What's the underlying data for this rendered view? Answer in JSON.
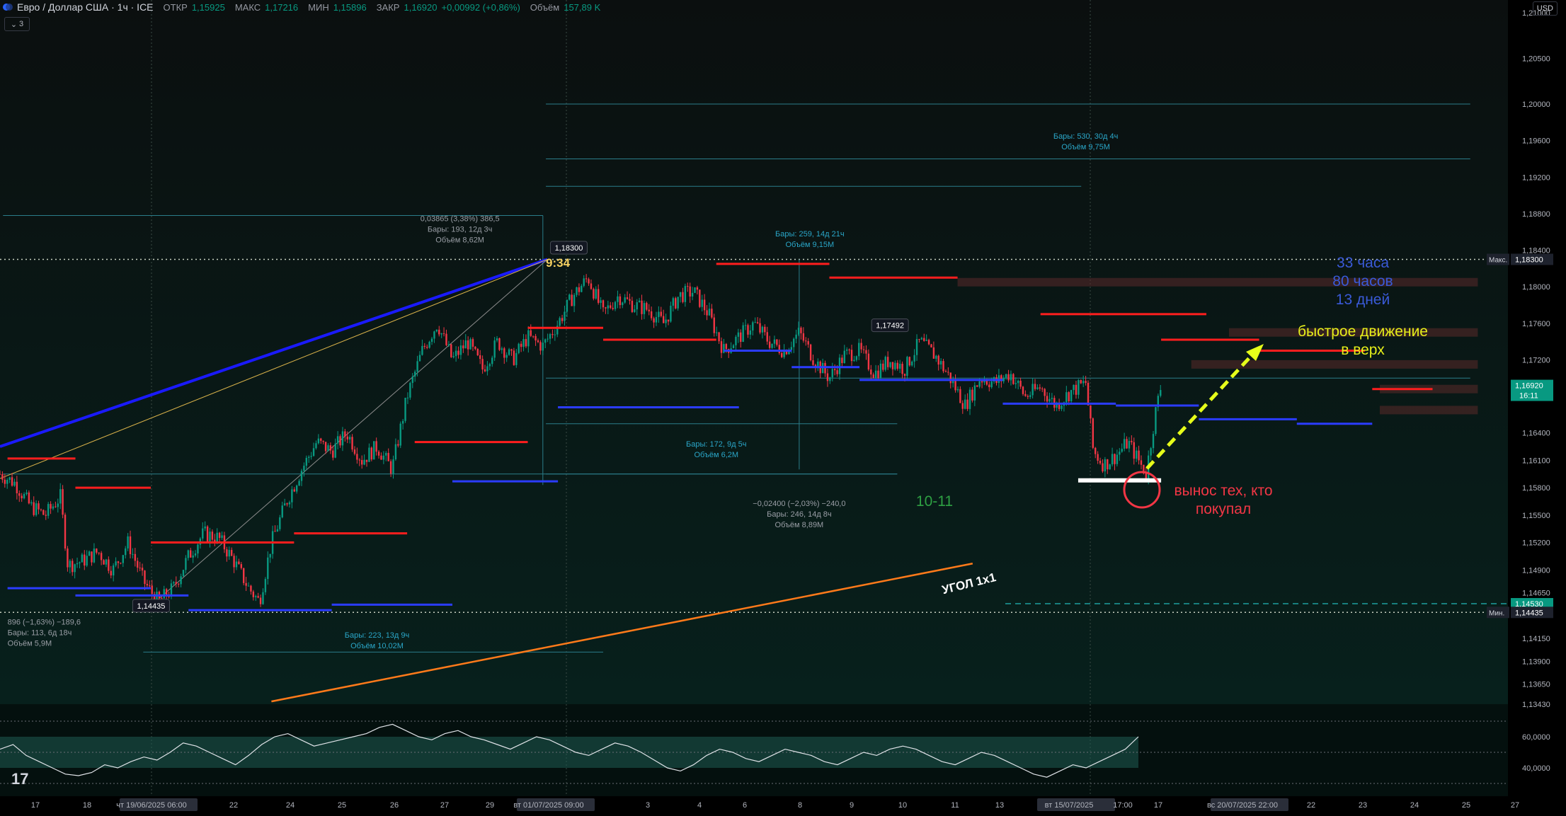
{
  "header": {
    "symbol": "Евро / Доллар США · 1ч · ICE",
    "open_label": "ОТКР",
    "open": "1,15925",
    "high_label": "МАКС",
    "high": "1,17216",
    "low_label": "МИН",
    "low": "1,15896",
    "close_label": "ЗАКР",
    "close": "1,16920",
    "change": "+0,00992 (+0,86%)",
    "volume_label": "Объём",
    "volume": "157,89 K",
    "indicator_toggle": "3",
    "currency": "USD"
  },
  "colors": {
    "background": "#000000",
    "up": "#089981",
    "down": "#f23645",
    "resistance": "#ff1e1e",
    "support": "#2b3cff",
    "trendline_blue": "#1a1aff",
    "trendline_orange": "#ff7a1a",
    "arrow": "#e6ff1a",
    "rsi_fill": "#1f5b52"
  },
  "chart_data": {
    "type": "candlestick",
    "symbol": "EURUSD",
    "timeframe": "1h",
    "y_axis": {
      "min": 1.1343,
      "max": 1.21,
      "ticks": [
        "1,21000",
        "1,20500",
        "1,20000",
        "1,19600",
        "1,19200",
        "1,18800",
        "1,18400",
        "1,18000",
        "1,17600",
        "1,17200",
        "1,16800",
        "1,16400",
        "1,16100",
        "1,15800",
        "1,15500",
        "1,15200",
        "1,14900",
        "1,14650",
        "1,14150",
        "1,13900",
        "1,13650",
        "1,13430"
      ]
    },
    "price_labels": [
      {
        "text": "Макс.",
        "value": "1,18300"
      },
      {
        "text": "",
        "value": "1,16920",
        "sub": "16:11"
      },
      {
        "text": "",
        "value": "1,14530"
      },
      {
        "text": "Мин.",
        "value": "1,14435"
      }
    ],
    "x_axis": {
      "ticks": [
        "17",
        "18",
        "чт 19/06/2025   06:00",
        "22",
        "24",
        "25",
        "26",
        "27",
        "29",
        "вт 01/07/2025   09:00",
        "3",
        "4",
        "6",
        "8",
        "9",
        "10",
        "11",
        "13",
        "вт 15/07/2025",
        "17:00",
        "17",
        "вс 20/07/2025   22:00",
        "22",
        "23",
        "24",
        "25",
        "27"
      ]
    },
    "close_path": [
      {
        "x": 0.0,
        "y": 1.1595
      },
      {
        "x": 0.01,
        "y": 1.1585
      },
      {
        "x": 0.02,
        "y": 1.156
      },
      {
        "x": 0.03,
        "y": 1.155
      },
      {
        "x": 0.04,
        "y": 1.157
      },
      {
        "x": 0.045,
        "y": 1.1495
      },
      {
        "x": 0.055,
        "y": 1.15
      },
      {
        "x": 0.065,
        "y": 1.151
      },
      {
        "x": 0.075,
        "y": 1.149
      },
      {
        "x": 0.085,
        "y": 1.152
      },
      {
        "x": 0.095,
        "y": 1.1478
      },
      {
        "x": 0.105,
        "y": 1.1455
      },
      {
        "x": 0.115,
        "y": 1.147
      },
      {
        "x": 0.125,
        "y": 1.1505
      },
      {
        "x": 0.135,
        "y": 1.153
      },
      {
        "x": 0.145,
        "y": 1.1525
      },
      {
        "x": 0.155,
        "y": 1.15
      },
      {
        "x": 0.165,
        "y": 1.147
      },
      {
        "x": 0.172,
        "y": 1.1455
      },
      {
        "x": 0.18,
        "y": 1.152
      },
      {
        "x": 0.19,
        "y": 1.1565
      },
      {
        "x": 0.2,
        "y": 1.16
      },
      {
        "x": 0.21,
        "y": 1.163
      },
      {
        "x": 0.22,
        "y": 1.162
      },
      {
        "x": 0.23,
        "y": 1.164
      },
      {
        "x": 0.24,
        "y": 1.161
      },
      {
        "x": 0.25,
        "y": 1.1625
      },
      {
        "x": 0.26,
        "y": 1.16
      },
      {
        "x": 0.27,
        "y": 1.168
      },
      {
        "x": 0.28,
        "y": 1.173
      },
      {
        "x": 0.29,
        "y": 1.176
      },
      {
        "x": 0.3,
        "y": 1.172
      },
      {
        "x": 0.31,
        "y": 1.174
      },
      {
        "x": 0.32,
        "y": 1.171
      },
      {
        "x": 0.33,
        "y": 1.174
      },
      {
        "x": 0.34,
        "y": 1.172
      },
      {
        "x": 0.35,
        "y": 1.1745
      },
      {
        "x": 0.36,
        "y": 1.1735
      },
      {
        "x": 0.37,
        "y": 1.176
      },
      {
        "x": 0.38,
        "y": 1.179
      },
      {
        "x": 0.39,
        "y": 1.181
      },
      {
        "x": 0.4,
        "y": 1.177
      },
      {
        "x": 0.41,
        "y": 1.179
      },
      {
        "x": 0.42,
        "y": 1.178
      },
      {
        "x": 0.43,
        "y": 1.1775
      },
      {
        "x": 0.44,
        "y": 1.176
      },
      {
        "x": 0.45,
        "y": 1.179
      },
      {
        "x": 0.46,
        "y": 1.1795
      },
      {
        "x": 0.47,
        "y": 1.177
      },
      {
        "x": 0.48,
        "y": 1.173
      },
      {
        "x": 0.49,
        "y": 1.1745
      },
      {
        "x": 0.5,
        "y": 1.176
      },
      {
        "x": 0.51,
        "y": 1.174
      },
      {
        "x": 0.52,
        "y": 1.173
      },
      {
        "x": 0.53,
        "y": 1.175
      },
      {
        "x": 0.54,
        "y": 1.172
      },
      {
        "x": 0.55,
        "y": 1.17
      },
      {
        "x": 0.56,
        "y": 1.1725
      },
      {
        "x": 0.57,
        "y": 1.173
      },
      {
        "x": 0.58,
        "y": 1.1705
      },
      {
        "x": 0.59,
        "y": 1.172
      },
      {
        "x": 0.6,
        "y": 1.171
      },
      {
        "x": 0.61,
        "y": 1.174
      },
      {
        "x": 0.62,
        "y": 1.1725
      },
      {
        "x": 0.63,
        "y": 1.17
      },
      {
        "x": 0.64,
        "y": 1.167
      },
      {
        "x": 0.65,
        "y": 1.17
      },
      {
        "x": 0.66,
        "y": 1.1695
      },
      {
        "x": 0.67,
        "y": 1.1705
      },
      {
        "x": 0.68,
        "y": 1.168
      },
      {
        "x": 0.69,
        "y": 1.169
      },
      {
        "x": 0.7,
        "y": 1.167
      },
      {
        "x": 0.71,
        "y": 1.1685
      },
      {
        "x": 0.72,
        "y": 1.1695
      },
      {
        "x": 0.725,
        "y": 1.162
      },
      {
        "x": 0.732,
        "y": 1.1605
      },
      {
        "x": 0.74,
        "y": 1.1615
      },
      {
        "x": 0.748,
        "y": 1.163
      },
      {
        "x": 0.755,
        "y": 1.161
      },
      {
        "x": 0.76,
        "y": 1.1595
      },
      {
        "x": 0.766,
        "y": 1.166
      },
      {
        "x": 0.77,
        "y": 1.1692
      }
    ],
    "horizontal_levels": [
      {
        "color": "resistance",
        "value": 1.1825,
        "x": [
          0.475,
          0.55
        ]
      },
      {
        "color": "resistance",
        "value": 1.181,
        "x": [
          0.55,
          0.635
        ]
      },
      {
        "color": "resistance",
        "value": 1.177,
        "x": [
          0.69,
          0.8
        ]
      },
      {
        "color": "resistance",
        "value": 1.173,
        "x": [
          0.835,
          0.905
        ]
      },
      {
        "color": "resistance",
        "value": 1.1688,
        "x": [
          0.91,
          0.95
        ]
      },
      {
        "color": "resistance",
        "value": 1.163,
        "x": [
          0.275,
          0.35
        ]
      },
      {
        "color": "resistance",
        "value": 1.153,
        "x": [
          0.195,
          0.27
        ]
      },
      {
        "color": "resistance",
        "value": 1.152,
        "x": [
          0.1,
          0.195
        ]
      },
      {
        "color": "resistance",
        "value": 1.158,
        "x": [
          0.05,
          0.1
        ]
      },
      {
        "color": "resistance",
        "value": 1.1612,
        "x": [
          0.005,
          0.05
        ]
      },
      {
        "color": "resistance",
        "value": 1.1755,
        "x": [
          0.35,
          0.4
        ]
      },
      {
        "color": "resistance",
        "value": 1.1742,
        "x": [
          0.4,
          0.475
        ]
      },
      {
        "color": "resistance",
        "value": 1.1742,
        "x": [
          0.77,
          0.835
        ]
      },
      {
        "color": "support",
        "value": 1.147,
        "x": [
          0.005,
          0.1
        ]
      },
      {
        "color": "support",
        "value": 1.1462,
        "x": [
          0.05,
          0.125
        ]
      },
      {
        "color": "support",
        "value": 1.1446,
        "x": [
          0.125,
          0.22
        ]
      },
      {
        "color": "support",
        "value": 1.1452,
        "x": [
          0.22,
          0.3
        ]
      },
      {
        "color": "support",
        "value": 1.1587,
        "x": [
          0.3,
          0.37
        ]
      },
      {
        "color": "support",
        "value": 1.1668,
        "x": [
          0.37,
          0.49
        ]
      },
      {
        "color": "support",
        "value": 1.173,
        "x": [
          0.48,
          0.525
        ]
      },
      {
        "color": "support",
        "value": 1.1712,
        "x": [
          0.525,
          0.57
        ]
      },
      {
        "color": "support",
        "value": 1.1698,
        "x": [
          0.57,
          0.665
        ]
      },
      {
        "color": "support",
        "value": 1.1672,
        "x": [
          0.665,
          0.74
        ]
      },
      {
        "color": "support",
        "value": 1.167,
        "x": [
          0.74,
          0.795
        ]
      },
      {
        "color": "support",
        "value": 1.1655,
        "x": [
          0.795,
          0.86
        ]
      },
      {
        "color": "support",
        "value": 1.165,
        "x": [
          0.86,
          0.91
        ]
      }
    ],
    "zones": [
      {
        "value": 1.1805,
        "x": [
          0.635,
          0.98
        ]
      },
      {
        "value": 1.175,
        "x": [
          0.815,
          0.98
        ]
      },
      {
        "value": 1.1715,
        "x": [
          0.79,
          0.98
        ]
      },
      {
        "value": 1.1688,
        "x": [
          0.915,
          0.98
        ]
      },
      {
        "value": 1.1665,
        "x": [
          0.915,
          0.98
        ]
      }
    ],
    "measurements": [
      {
        "lines": [
          "0,03865 (3,38%) 386,5",
          "Бары: 193, 12д 3ч",
          "Объём 8,62M"
        ]
      },
      {
        "lines": [
          "Бары: 259, 14д 21ч",
          "Объём 9,15M"
        ]
      },
      {
        "lines": [
          "Бары: 530, 30д 4ч",
          "Объём 9,75M"
        ]
      },
      {
        "lines": [
          "Бары: 172, 9д 5ч",
          "Объём 6,2M"
        ]
      },
      {
        "lines": [
          "−0,02400 (−2,03%) −240,0",
          "Бары: 246, 14д 8ч",
          "Объём 8,89M"
        ]
      },
      {
        "lines": [
          "896 (−1,63%) −189,6",
          "Бары: 113, 6д 18ч",
          "Объём 5,9M"
        ]
      },
      {
        "lines": [
          "Бары: 223, 13д 9ч",
          "Объём 10,02M"
        ]
      }
    ],
    "callouts": [
      {
        "text": "1,18300"
      },
      {
        "text": "1,17492"
      },
      {
        "text": "1,14435"
      }
    ],
    "annotations": {
      "time_mark": "9:34",
      "counts": [
        "33 часа",
        "80 часов",
        "13 дней"
      ],
      "fast_move": [
        "быстрое движение",
        "в верх"
      ],
      "stop_hunt": [
        "вынос тех, кто",
        "покупал"
      ],
      "num": "10-11",
      "angle": "УГОЛ 1x1"
    },
    "rsi": {
      "ticks": [
        "60,0000",
        "40,0000"
      ],
      "upper": 60,
      "lower": 40,
      "values": [
        52,
        55,
        48,
        44,
        40,
        36,
        35,
        37,
        42,
        40,
        44,
        47,
        45,
        50,
        56,
        54,
        50,
        46,
        42,
        48,
        55,
        60,
        62,
        58,
        54,
        56,
        58,
        60,
        62,
        66,
        68,
        64,
        60,
        58,
        62,
        64,
        60,
        58,
        55,
        52,
        56,
        60,
        58,
        54,
        50,
        48,
        52,
        56,
        54,
        50,
        45,
        40,
        38,
        42,
        48,
        52,
        50,
        46,
        44,
        48,
        52,
        50,
        48,
        44,
        42,
        46,
        50,
        48,
        52,
        54,
        52,
        48,
        44,
        42,
        46,
        50,
        48,
        44,
        40,
        36,
        34,
        38,
        42,
        40,
        44,
        48,
        52,
        60
      ]
    }
  },
  "footer": {
    "logo": "17"
  }
}
